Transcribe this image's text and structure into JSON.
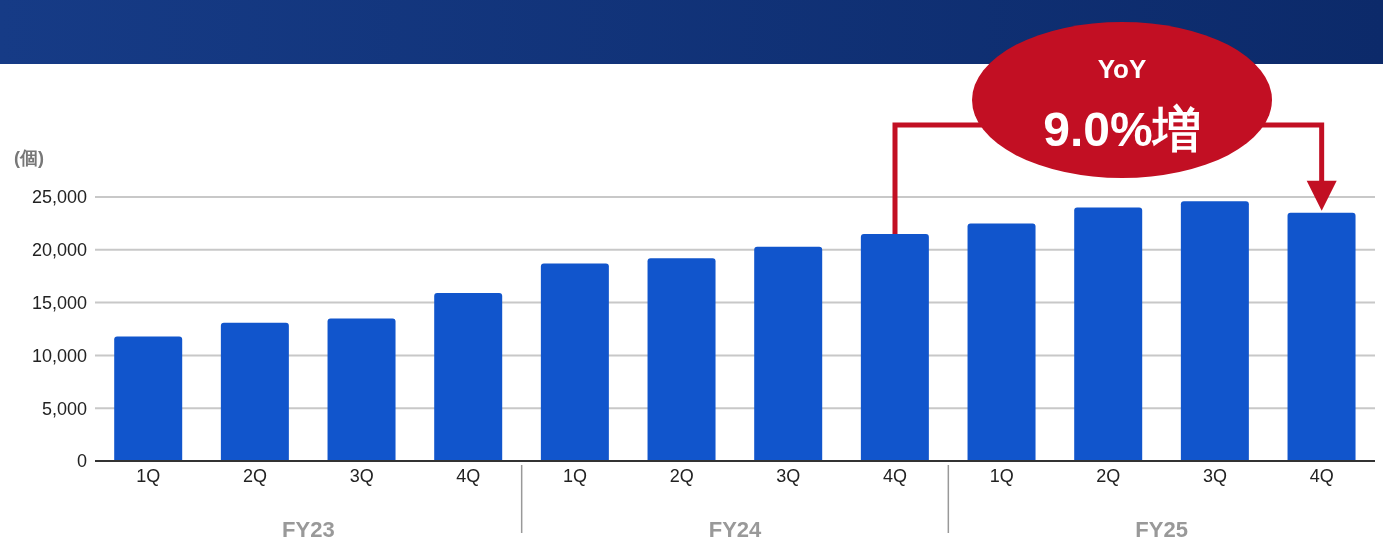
{
  "chart_data": {
    "type": "bar",
    "ylabel": "(個)",
    "categories": [
      "1Q",
      "2Q",
      "3Q",
      "4Q",
      "1Q",
      "2Q",
      "3Q",
      "4Q",
      "1Q",
      "2Q",
      "3Q",
      "4Q"
    ],
    "values": [
      11800,
      13100,
      13500,
      15900,
      18700,
      19200,
      20300,
      21500,
      22500,
      24000,
      24600,
      23500
    ],
    "color": "#1155cc",
    "ylim": [
      0,
      25000
    ],
    "yticks": [
      0,
      {
        "value": 5000,
        "label": "5,000"
      },
      {
        "value": 10000,
        "label": "10,000"
      },
      {
        "value": 15000,
        "label": "15,000"
      },
      {
        "value": 20000,
        "label": "20,000"
      },
      {
        "value": 25000,
        "label": "25,000"
      }
    ],
    "grid": "y",
    "annotations": [
      "FY23",
      "FY24",
      "FY25",
      "YoY",
      "9.0%増"
    ]
  }
}
